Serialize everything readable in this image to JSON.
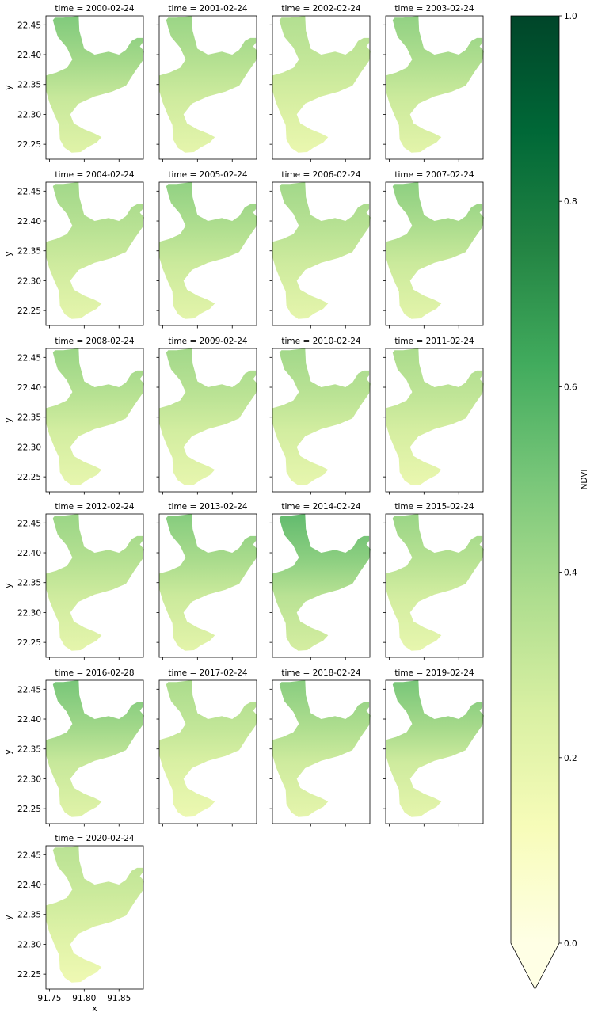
{
  "chart_data": {
    "type": "heatmap",
    "facet_label_prefix": "time = ",
    "panels": [
      {
        "time": "2000-02-24",
        "mean_ndvi": 0.3,
        "north_ndvi": 0.48
      },
      {
        "time": "2001-02-24",
        "mean_ndvi": 0.28,
        "north_ndvi": 0.42
      },
      {
        "time": "2002-02-24",
        "mean_ndvi": 0.26,
        "north_ndvi": 0.36
      },
      {
        "time": "2003-02-24",
        "mean_ndvi": 0.29,
        "north_ndvi": 0.44
      },
      {
        "time": "2004-02-24",
        "mean_ndvi": 0.28,
        "north_ndvi": 0.4
      },
      {
        "time": "2005-02-24",
        "mean_ndvi": 0.29,
        "north_ndvi": 0.44
      },
      {
        "time": "2006-02-24",
        "mean_ndvi": 0.28,
        "north_ndvi": 0.4
      },
      {
        "time": "2007-02-24",
        "mean_ndvi": 0.29,
        "north_ndvi": 0.45
      },
      {
        "time": "2008-02-24",
        "mean_ndvi": 0.27,
        "north_ndvi": 0.42
      },
      {
        "time": "2009-02-24",
        "mean_ndvi": 0.27,
        "north_ndvi": 0.4
      },
      {
        "time": "2010-02-24",
        "mean_ndvi": 0.27,
        "north_ndvi": 0.4
      },
      {
        "time": "2011-02-24",
        "mean_ndvi": 0.26,
        "north_ndvi": 0.38
      },
      {
        "time": "2012-02-24",
        "mean_ndvi": 0.28,
        "north_ndvi": 0.42
      },
      {
        "time": "2013-02-24",
        "mean_ndvi": 0.29,
        "north_ndvi": 0.47
      },
      {
        "time": "2014-02-24",
        "mean_ndvi": 0.34,
        "north_ndvi": 0.55
      },
      {
        "time": "2015-02-24",
        "mean_ndvi": 0.27,
        "north_ndvi": 0.42
      },
      {
        "time": "2016-02-28",
        "mean_ndvi": 0.3,
        "north_ndvi": 0.5
      },
      {
        "time": "2017-02-24",
        "mean_ndvi": 0.25,
        "north_ndvi": 0.38
      },
      {
        "time": "2018-02-24",
        "mean_ndvi": 0.28,
        "north_ndvi": 0.46
      },
      {
        "time": "2019-02-24",
        "mean_ndvi": 0.28,
        "north_ndvi": 0.5
      },
      {
        "time": "2020-02-24",
        "mean_ndvi": 0.24,
        "north_ndvi": 0.34
      }
    ],
    "grid": {
      "rows": 6,
      "cols": 4
    },
    "xlabel": "x",
    "ylabel": "y",
    "xlim": [
      91.745,
      91.885
    ],
    "ylim": [
      22.225,
      22.465
    ],
    "xticks": [
      91.75,
      91.8,
      91.85
    ],
    "xtick_labels": [
      "91.75",
      "91.80",
      "91.85"
    ],
    "yticks": [
      22.25,
      22.3,
      22.35,
      22.4,
      22.45
    ],
    "ytick_labels": [
      "22.25",
      "22.30",
      "22.35",
      "22.40",
      "22.45"
    ],
    "colorbar": {
      "label": "NDVI",
      "range": [
        0.0,
        1.0
      ],
      "ticks": [
        0.0,
        0.2,
        0.4,
        0.6,
        0.8,
        1.0
      ],
      "tick_labels": [
        "0.0",
        "0.2",
        "0.4",
        "0.6",
        "0.8",
        "1.0"
      ],
      "extend": "min",
      "colormap": "YlGn",
      "colormap_stops": [
        "#ffffe5",
        "#f7fcb9",
        "#d9f0a3",
        "#addd8e",
        "#78c679",
        "#41ab5d",
        "#238443",
        "#006837",
        "#004529"
      ]
    },
    "region_outline_lonlat": [
      [
        91.755,
        22.458
      ],
      [
        91.758,
        22.462
      ],
      [
        91.77,
        22.462
      ],
      [
        91.792,
        22.465
      ],
      [
        91.793,
        22.44
      ],
      [
        91.8,
        22.41
      ],
      [
        91.815,
        22.4
      ],
      [
        91.835,
        22.405
      ],
      [
        91.85,
        22.4
      ],
      [
        91.86,
        22.408
      ],
      [
        91.868,
        22.423
      ],
      [
        91.876,
        22.428
      ],
      [
        91.884,
        22.428
      ],
      [
        91.884,
        22.42
      ],
      [
        91.88,
        22.414
      ],
      [
        91.886,
        22.406
      ],
      [
        91.884,
        22.39
      ],
      [
        91.872,
        22.37
      ],
      [
        91.86,
        22.348
      ],
      [
        91.84,
        22.338
      ],
      [
        91.815,
        22.33
      ],
      [
        91.792,
        22.318
      ],
      [
        91.78,
        22.3
      ],
      [
        91.785,
        22.285
      ],
      [
        91.8,
        22.275
      ],
      [
        91.815,
        22.268
      ],
      [
        91.825,
        22.262
      ],
      [
        91.818,
        22.253
      ],
      [
        91.805,
        22.245
      ],
      [
        91.795,
        22.237
      ],
      [
        91.782,
        22.236
      ],
      [
        91.772,
        22.244
      ],
      [
        91.765,
        22.258
      ],
      [
        91.764,
        22.282
      ],
      [
        91.757,
        22.3
      ],
      [
        91.75,
        22.32
      ],
      [
        91.745,
        22.34
      ],
      [
        91.745,
        22.365
      ],
      [
        91.76,
        22.37
      ],
      [
        91.775,
        22.378
      ],
      [
        91.783,
        22.392
      ],
      [
        91.775,
        22.412
      ],
      [
        91.762,
        22.43
      ],
      [
        91.758,
        22.445
      ]
    ]
  }
}
